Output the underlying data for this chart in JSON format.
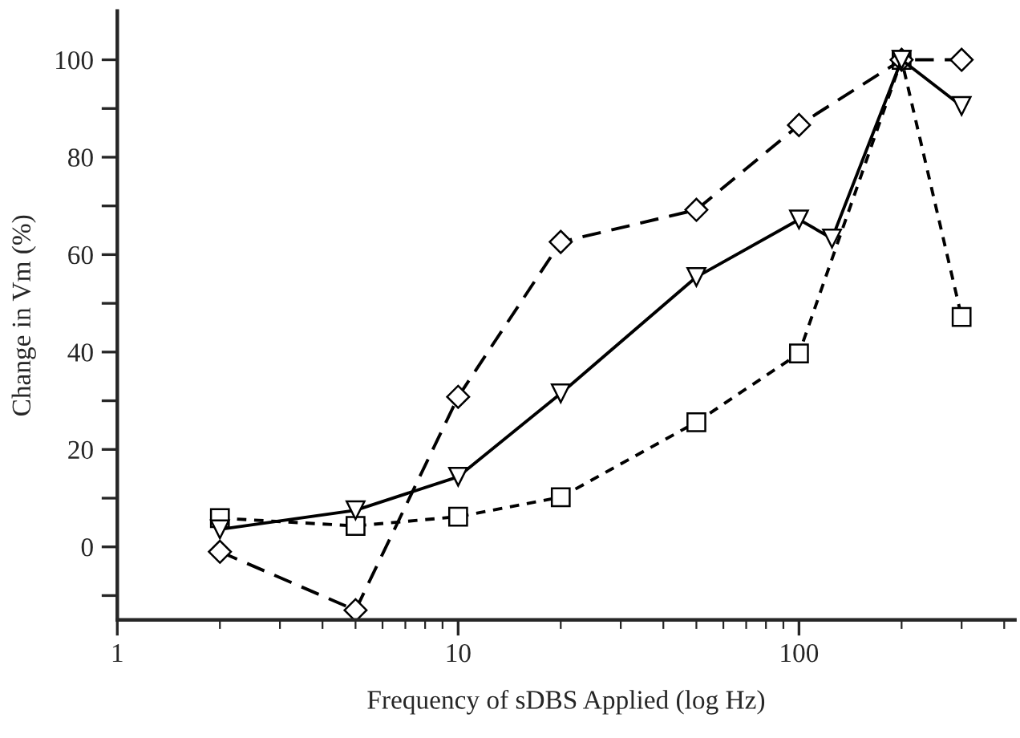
{
  "chart_data": {
    "type": "line",
    "xlabel": "Frequency of sDBS Applied (log Hz)",
    "ylabel": "Change in Vm (%)",
    "log": "x",
    "xlim": [
      1,
      430
    ],
    "xticks": [
      1,
      10,
      100
    ],
    "ylim": [
      -15,
      110
    ],
    "yticks": [
      {
        "value": -10,
        "label": null
      },
      0,
      {
        "value": 10,
        "label": null
      },
      20,
      {
        "value": 30,
        "label": null
      },
      40,
      {
        "value": 50,
        "label": null
      },
      60,
      {
        "value": 70,
        "label": null
      },
      80,
      {
        "value": 90,
        "label": null
      },
      100
    ],
    "grid": false,
    "series": [
      {
        "color": "#000000",
        "marker": "square",
        "line_style": "dotted",
        "x": [
          2,
          5,
          10,
          20,
          50,
          100,
          200,
          300
        ],
        "values": [
          5.9,
          4.3,
          6.2,
          10.2,
          25.6,
          39.7,
          100,
          47.2
        ]
      },
      {
        "color": "#000000",
        "marker": "diamond",
        "line_style": "dashed",
        "x": [
          2,
          5,
          10,
          20,
          50,
          100,
          200,
          300
        ],
        "values": [
          -1,
          -13,
          30.8,
          62.6,
          69.2,
          86.6,
          100,
          100
        ]
      },
      {
        "color": "#000000",
        "marker": "triangle",
        "line_style": "solid",
        "x": [
          2,
          5,
          10,
          20,
          50,
          100,
          125,
          200,
          300
        ],
        "values": [
          3.6,
          7.5,
          14.4,
          31.5,
          55.4,
          67.2,
          63.3,
          100,
          90.5
        ]
      }
    ]
  }
}
